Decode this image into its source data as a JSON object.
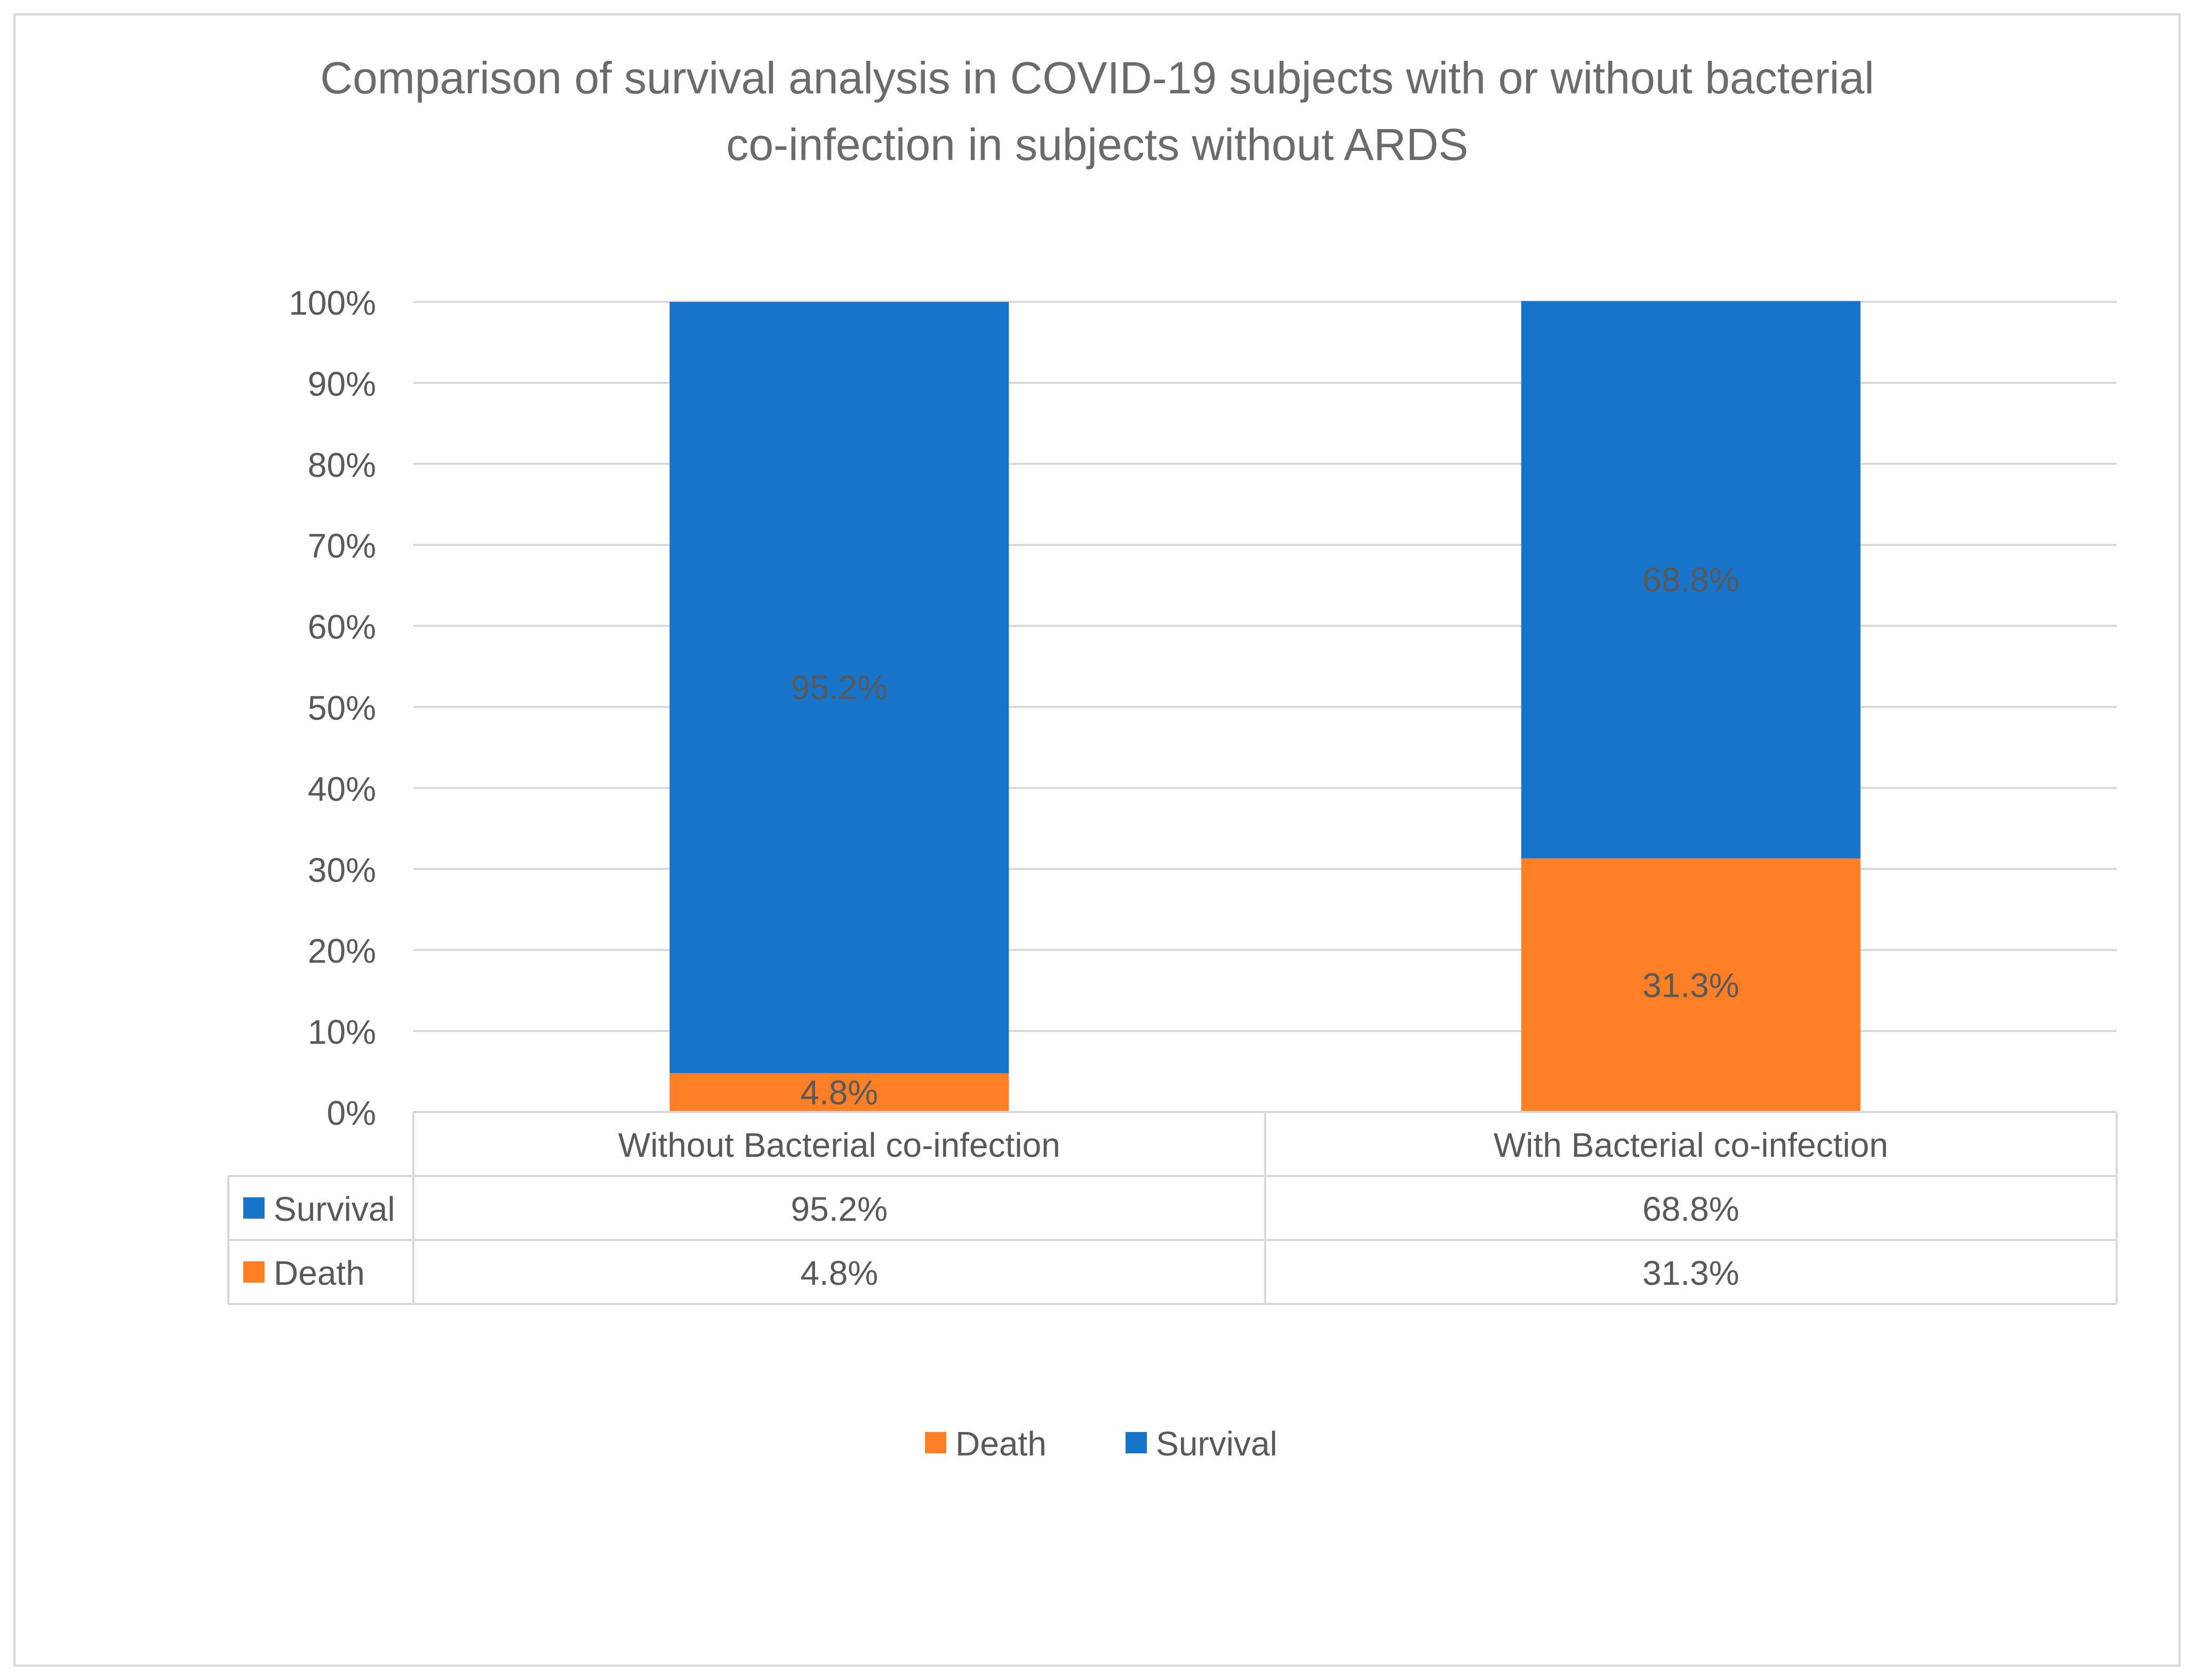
{
  "chart_data": {
    "type": "bar",
    "stacked": true,
    "title_lines": [
      "Comparison of survival analysis in COVID-19 subjects with or without bacterial",
      "co-infection in subjects without ARDS"
    ],
    "categories": [
      "Without Bacterial co-infection",
      "With Bacterial co-infection"
    ],
    "series": [
      {
        "name": "Death",
        "values": [
          4.8,
          31.3
        ],
        "labels": [
          "4.8%",
          "31.3%"
        ],
        "color": "#FF7F27"
      },
      {
        "name": "Survival",
        "values": [
          95.2,
          68.8
        ],
        "labels": [
          "95.2%",
          "68.8%"
        ],
        "color": "#1874C9"
      }
    ],
    "ylim": [
      0,
      100
    ],
    "yticks": [
      "0%",
      "10%",
      "20%",
      "30%",
      "40%",
      "50%",
      "60%",
      "70%",
      "80%",
      "90%",
      "100%"
    ],
    "data_table": {
      "rows": [
        {
          "name": "Survival",
          "color": "#1874C9",
          "cells": [
            "95.2%",
            "68.8%"
          ]
        },
        {
          "name": "Death",
          "color": "#FF7F27",
          "cells": [
            "4.8%",
            "31.3%"
          ]
        }
      ]
    },
    "legend": [
      {
        "name": "Death",
        "color": "#FF7F27"
      },
      {
        "name": "Survival",
        "color": "#1874C9"
      }
    ],
    "legend_position": "bottom",
    "grid": true
  }
}
